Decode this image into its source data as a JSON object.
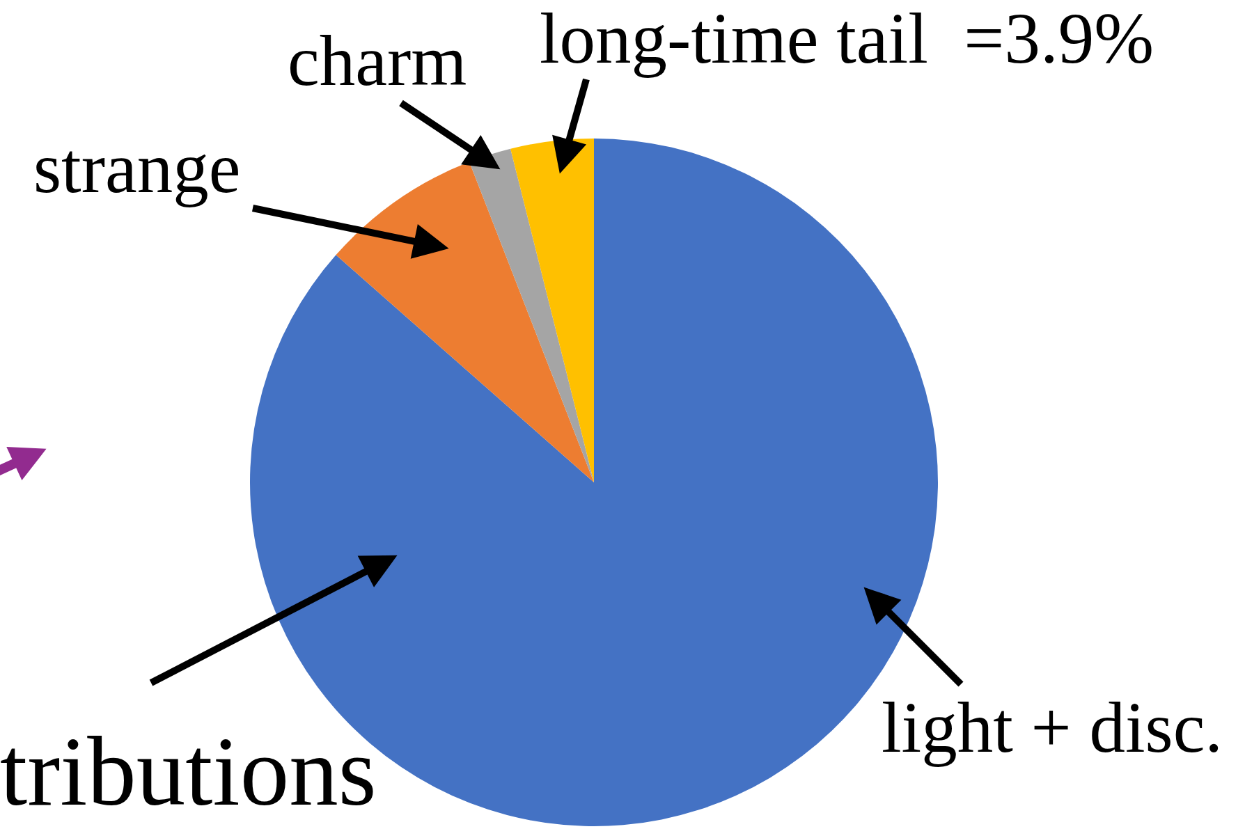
{
  "chart_data": {
    "type": "pie",
    "categories": [
      "light + disc.",
      "strange",
      "charm",
      "long-time tail"
    ],
    "values": [
      86.5,
      7.6,
      2.0,
      3.9
    ],
    "colors": [
      "#4472c4",
      "#ed7d31",
      "#a5a5a5",
      "#ffc000"
    ],
    "value_labels": [
      null,
      null,
      null,
      "=3.9%"
    ],
    "annotations": [
      "tributions"
    ]
  }
}
